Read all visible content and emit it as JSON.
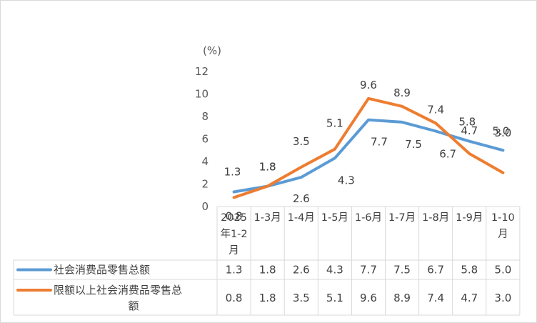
{
  "chart_data": {
    "type": "line",
    "unit_label": "(%)",
    "categories": [
      [
        "2025",
        "年1-2",
        "月"
      ],
      [
        "1-3月"
      ],
      [
        "1-4月"
      ],
      [
        "1-5月"
      ],
      [
        "1-6月"
      ],
      [
        "1-7月"
      ],
      [
        "1-8月"
      ],
      [
        "1-9月"
      ],
      [
        "1-10",
        "月"
      ]
    ],
    "ylim": [
      0,
      12
    ],
    "yticks": [
      0,
      2,
      4,
      6,
      8,
      10,
      12
    ],
    "grid": false,
    "legend": "data-table-bottom",
    "series": [
      {
        "name": "社会消费品零售总额",
        "name_lines": [
          "社会消费品零售总额"
        ],
        "color": "#5b9bd5",
        "values": [
          1.3,
          1.8,
          2.6,
          4.3,
          7.7,
          7.5,
          6.7,
          5.8,
          5.0
        ],
        "labels": [
          "1.3",
          "1.8",
          "2.6",
          "4.3",
          "7.7",
          "7.5",
          "6.7",
          "5.8",
          "5.0"
        ]
      },
      {
        "name": "限额以上社会消费品零售总额",
        "name_lines": [
          "限额以上社会消费品零售总",
          "额"
        ],
        "color": "#ed7d31",
        "values": [
          0.8,
          1.8,
          3.5,
          5.1,
          9.6,
          8.9,
          7.4,
          4.7,
          3.0
        ],
        "labels": [
          "0.8",
          "1.8",
          "3.5",
          "5.1",
          "9.6",
          "8.9",
          "7.4",
          "4.7",
          "3.0"
        ]
      }
    ]
  }
}
